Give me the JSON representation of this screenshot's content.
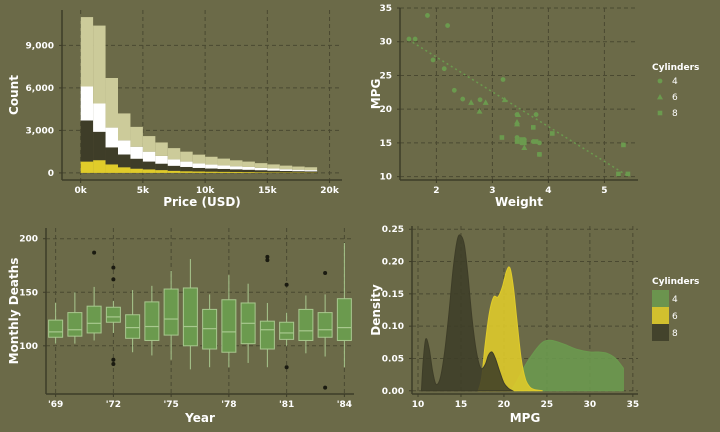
{
  "colors": {
    "background": "#6b6a48",
    "grid": "#4a4931",
    "axis": "#3d3c28",
    "white": "#ffffff",
    "green": "#6b9a4e",
    "green_light": "#a8c88e",
    "yellow": "#e0cc2a",
    "dark": "#3e3d28",
    "khaki": "#cccb9a"
  },
  "chart_data": [
    {
      "id": "price-histogram",
      "type": "bar",
      "xlabel": "Price (USD)",
      "ylabel": "Count",
      "x_ticks": [
        "0k",
        "5k",
        "10k",
        "15k",
        "20k"
      ],
      "x_tick_values": [
        0,
        5000,
        10000,
        15000,
        20000
      ],
      "y_ticks": [
        "0",
        "3,000",
        "6,000",
        "9,000"
      ],
      "y_tick_values": [
        0,
        3000,
        6000,
        9000
      ],
      "xlim": [
        -1500,
        21000
      ],
      "ylim": [
        -500,
        11500
      ],
      "bin_width": 1000,
      "bin_starts": [
        0,
        1000,
        2000,
        3000,
        4000,
        5000,
        6000,
        7000,
        8000,
        9000,
        10000,
        11000,
        12000,
        13000,
        14000,
        15000,
        16000,
        17000,
        18000
      ],
      "series": [
        {
          "color": "#e0cc2a",
          "values": [
            800,
            900,
            600,
            400,
            300,
            250,
            200,
            150,
            120,
            100,
            90,
            80,
            70,
            60,
            50,
            40,
            35,
            30,
            25
          ]
        },
        {
          "color": "#3e3d28",
          "values": [
            2900,
            2000,
            1200,
            900,
            700,
            550,
            450,
            350,
            300,
            250,
            220,
            200,
            180,
            160,
            140,
            120,
            100,
            90,
            80
          ]
        },
        {
          "color": "#ffffff",
          "values": [
            2400,
            2000,
            1400,
            1000,
            850,
            700,
            550,
            450,
            380,
            320,
            280,
            250,
            220,
            200,
            170,
            150,
            130,
            110,
            95
          ]
        },
        {
          "color": "#cccb9a",
          "values": [
            4900,
            5500,
            3500,
            1900,
            1400,
            1100,
            950,
            800,
            700,
            620,
            550,
            480,
            420,
            380,
            330,
            290,
            250,
            220,
            200
          ]
        }
      ]
    },
    {
      "id": "mpg-weight-scatter",
      "type": "scatter",
      "xlabel": "Weight",
      "ylabel": "MPG",
      "x_ticks": [
        "2",
        "3",
        "4",
        "5"
      ],
      "x_tick_values": [
        2,
        3,
        4,
        5
      ],
      "y_ticks": [
        "10",
        "15",
        "20",
        "25",
        "30",
        "35"
      ],
      "y_tick_values": [
        10,
        15,
        20,
        25,
        30,
        35
      ],
      "xlim": [
        1.35,
        5.6
      ],
      "ylim": [
        9.5,
        35
      ],
      "legend_title": "Cylinders",
      "legend_position": "right",
      "trend": {
        "x": [
          1.5,
          5.4
        ],
        "y": [
          30.3,
          10.2
        ]
      },
      "series": [
        {
          "name": "4",
          "shape": "circle",
          "points": [
            [
              1.51,
              30.4
            ],
            [
              1.62,
              30.4
            ],
            [
              1.84,
              33.9
            ],
            [
              1.94,
              27.3
            ],
            [
              2.14,
              26.0
            ],
            [
              2.2,
              32.4
            ],
            [
              2.32,
              22.8
            ],
            [
              2.47,
              21.5
            ],
            [
              2.78,
              21.4
            ],
            [
              3.19,
              24.4
            ],
            [
              3.44,
              19.2
            ],
            [
              3.57,
              15.5
            ],
            [
              3.73,
              15.2
            ],
            [
              3.84,
              13.3
            ],
            [
              3.78,
              19.2
            ],
            [
              3.44,
              15.8
            ],
            [
              3.52,
              15.0
            ],
            [
              3.84,
              15.0
            ]
          ]
        },
        {
          "name": "6",
          "shape": "triangle",
          "points": [
            [
              2.62,
              21.0
            ],
            [
              2.88,
              21.0
            ],
            [
              2.77,
              19.7
            ],
            [
              3.22,
              21.4
            ],
            [
              3.44,
              18.1
            ],
            [
              3.46,
              19.2
            ],
            [
              3.44,
              17.8
            ],
            [
              3.57,
              14.3
            ]
          ]
        },
        {
          "name": "8",
          "shape": "square",
          "points": [
            [
              3.17,
              15.8
            ],
            [
              3.44,
              15.2
            ],
            [
              3.52,
              15.5
            ],
            [
              3.57,
              15.0
            ],
            [
              3.73,
              17.3
            ],
            [
              3.78,
              15.2
            ],
            [
              3.84,
              13.3
            ],
            [
              4.07,
              16.4
            ],
            [
              5.25,
              10.4
            ],
            [
              5.42,
              10.4
            ],
            [
              5.34,
              14.7
            ]
          ]
        }
      ]
    },
    {
      "id": "deaths-boxplot",
      "type": "box",
      "xlabel": "Year",
      "ylabel": "Monthly Deaths",
      "x_ticks": [
        "'69",
        "'72",
        "'75",
        "'78",
        "'81",
        "'84"
      ],
      "x_tick_values": [
        1969,
        1972,
        1975,
        1978,
        1981,
        1984
      ],
      "y_ticks": [
        "100",
        "150",
        "200"
      ],
      "y_tick_values": [
        100,
        150,
        200
      ],
      "xlim": [
        1968.5,
        1984.5
      ],
      "ylim": [
        55,
        210
      ],
      "boxes": [
        {
          "year": 1969,
          "min": 102,
          "q1": 108,
          "median": 113,
          "q3": 124,
          "max": 140
        },
        {
          "year": 1970,
          "min": 102,
          "q1": 109,
          "median": 115,
          "q3": 131,
          "max": 150
        },
        {
          "year": 1971,
          "min": 105,
          "q1": 112,
          "median": 121,
          "q3": 137,
          "max": 155,
          "outliers": [
            187
          ]
        },
        {
          "year": 1972,
          "min": 112,
          "q1": 122,
          "median": 127,
          "q3": 136,
          "max": 142,
          "outliers": [
            173,
            162,
            87,
            83
          ]
        },
        {
          "year": 1973,
          "min": 94,
          "q1": 107,
          "median": 117,
          "q3": 129,
          "max": 152
        },
        {
          "year": 1974,
          "min": 91,
          "q1": 105,
          "median": 118,
          "q3": 141,
          "max": 156
        },
        {
          "year": 1975,
          "min": 87,
          "q1": 110,
          "median": 125,
          "q3": 153,
          "max": 170
        },
        {
          "year": 1976,
          "min": 78,
          "q1": 100,
          "median": 118,
          "q3": 154,
          "max": 181
        },
        {
          "year": 1977,
          "min": 80,
          "q1": 97,
          "median": 116,
          "q3": 134,
          "max": 148
        },
        {
          "year": 1978,
          "min": 80,
          "q1": 94,
          "median": 113,
          "q3": 143,
          "max": 166
        },
        {
          "year": 1979,
          "min": 84,
          "q1": 102,
          "median": 121,
          "q3": 140,
          "max": 158
        },
        {
          "year": 1980,
          "min": 80,
          "q1": 97,
          "median": 115,
          "q3": 123,
          "max": 140,
          "outliers": [
            183,
            180
          ]
        },
        {
          "year": 1981,
          "min": 100,
          "q1": 106,
          "median": 112,
          "q3": 122,
          "max": 131,
          "outliers": [
            157,
            80
          ]
        },
        {
          "year": 1982,
          "min": 93,
          "q1": 105,
          "median": 114,
          "q3": 134,
          "max": 147
        },
        {
          "year": 1983,
          "min": 90,
          "q1": 108,
          "median": 115,
          "q3": 131,
          "max": 148,
          "outliers": [
            168,
            61
          ]
        },
        {
          "year": 1984,
          "min": 80,
          "q1": 105,
          "median": 117,
          "q3": 144,
          "max": 196
        }
      ]
    },
    {
      "id": "mpg-density",
      "type": "area",
      "xlabel": "MPG",
      "ylabel": "Density",
      "x_ticks": [
        "10",
        "15",
        "20",
        "25",
        "30",
        "35"
      ],
      "x_tick_values": [
        10,
        15,
        20,
        25,
        30,
        35
      ],
      "y_ticks": [
        "0.00",
        "0.05",
        "0.10",
        "0.15",
        "0.20",
        "0.25"
      ],
      "y_tick_values": [
        0,
        0.05,
        0.1,
        0.15,
        0.2,
        0.25
      ],
      "xlim": [
        9.3,
        35.6
      ],
      "ylim": [
        -0.005,
        0.255
      ],
      "legend_title": "Cylinders",
      "legend_position": "right",
      "series": [
        {
          "name": "4",
          "color": "#6b9a4e",
          "x": [
            20.8,
            21.5,
            22.5,
            23.5,
            24.5,
            25.5,
            27,
            28.5,
            30,
            31,
            32,
            33,
            33.9
          ],
          "y": [
            0.0,
            0.015,
            0.04,
            0.06,
            0.075,
            0.078,
            0.072,
            0.064,
            0.06,
            0.06,
            0.058,
            0.05,
            0.035
          ]
        },
        {
          "name": "6",
          "color": "#e0cc2a",
          "x": [
            17.0,
            17.4,
            17.8,
            18.3,
            18.8,
            19.3,
            19.8,
            20.3,
            20.7,
            21.1,
            21.5,
            22,
            22.5,
            23,
            23.5,
            24.5
          ],
          "y": [
            0.0,
            0.02,
            0.07,
            0.12,
            0.145,
            0.145,
            0.16,
            0.185,
            0.19,
            0.16,
            0.11,
            0.05,
            0.018,
            0.006,
            0.002,
            0.0
          ]
        },
        {
          "name": "8",
          "color": "#3e3d28",
          "x": [
            10.4,
            10.6,
            10.9,
            11.3,
            11.7,
            12.1,
            12.6,
            13.1,
            13.6,
            14.1,
            14.6,
            15.0,
            15.4,
            15.8,
            16.3,
            16.8,
            17.3,
            17.8,
            18.2,
            18.6,
            19.0,
            19.5,
            20.0,
            20.5,
            21.0
          ],
          "y": [
            0.0,
            0.045,
            0.08,
            0.065,
            0.03,
            0.01,
            0.02,
            0.06,
            0.12,
            0.19,
            0.235,
            0.24,
            0.225,
            0.18,
            0.11,
            0.06,
            0.035,
            0.04,
            0.055,
            0.06,
            0.05,
            0.03,
            0.012,
            0.004,
            0.0
          ]
        }
      ]
    }
  ]
}
